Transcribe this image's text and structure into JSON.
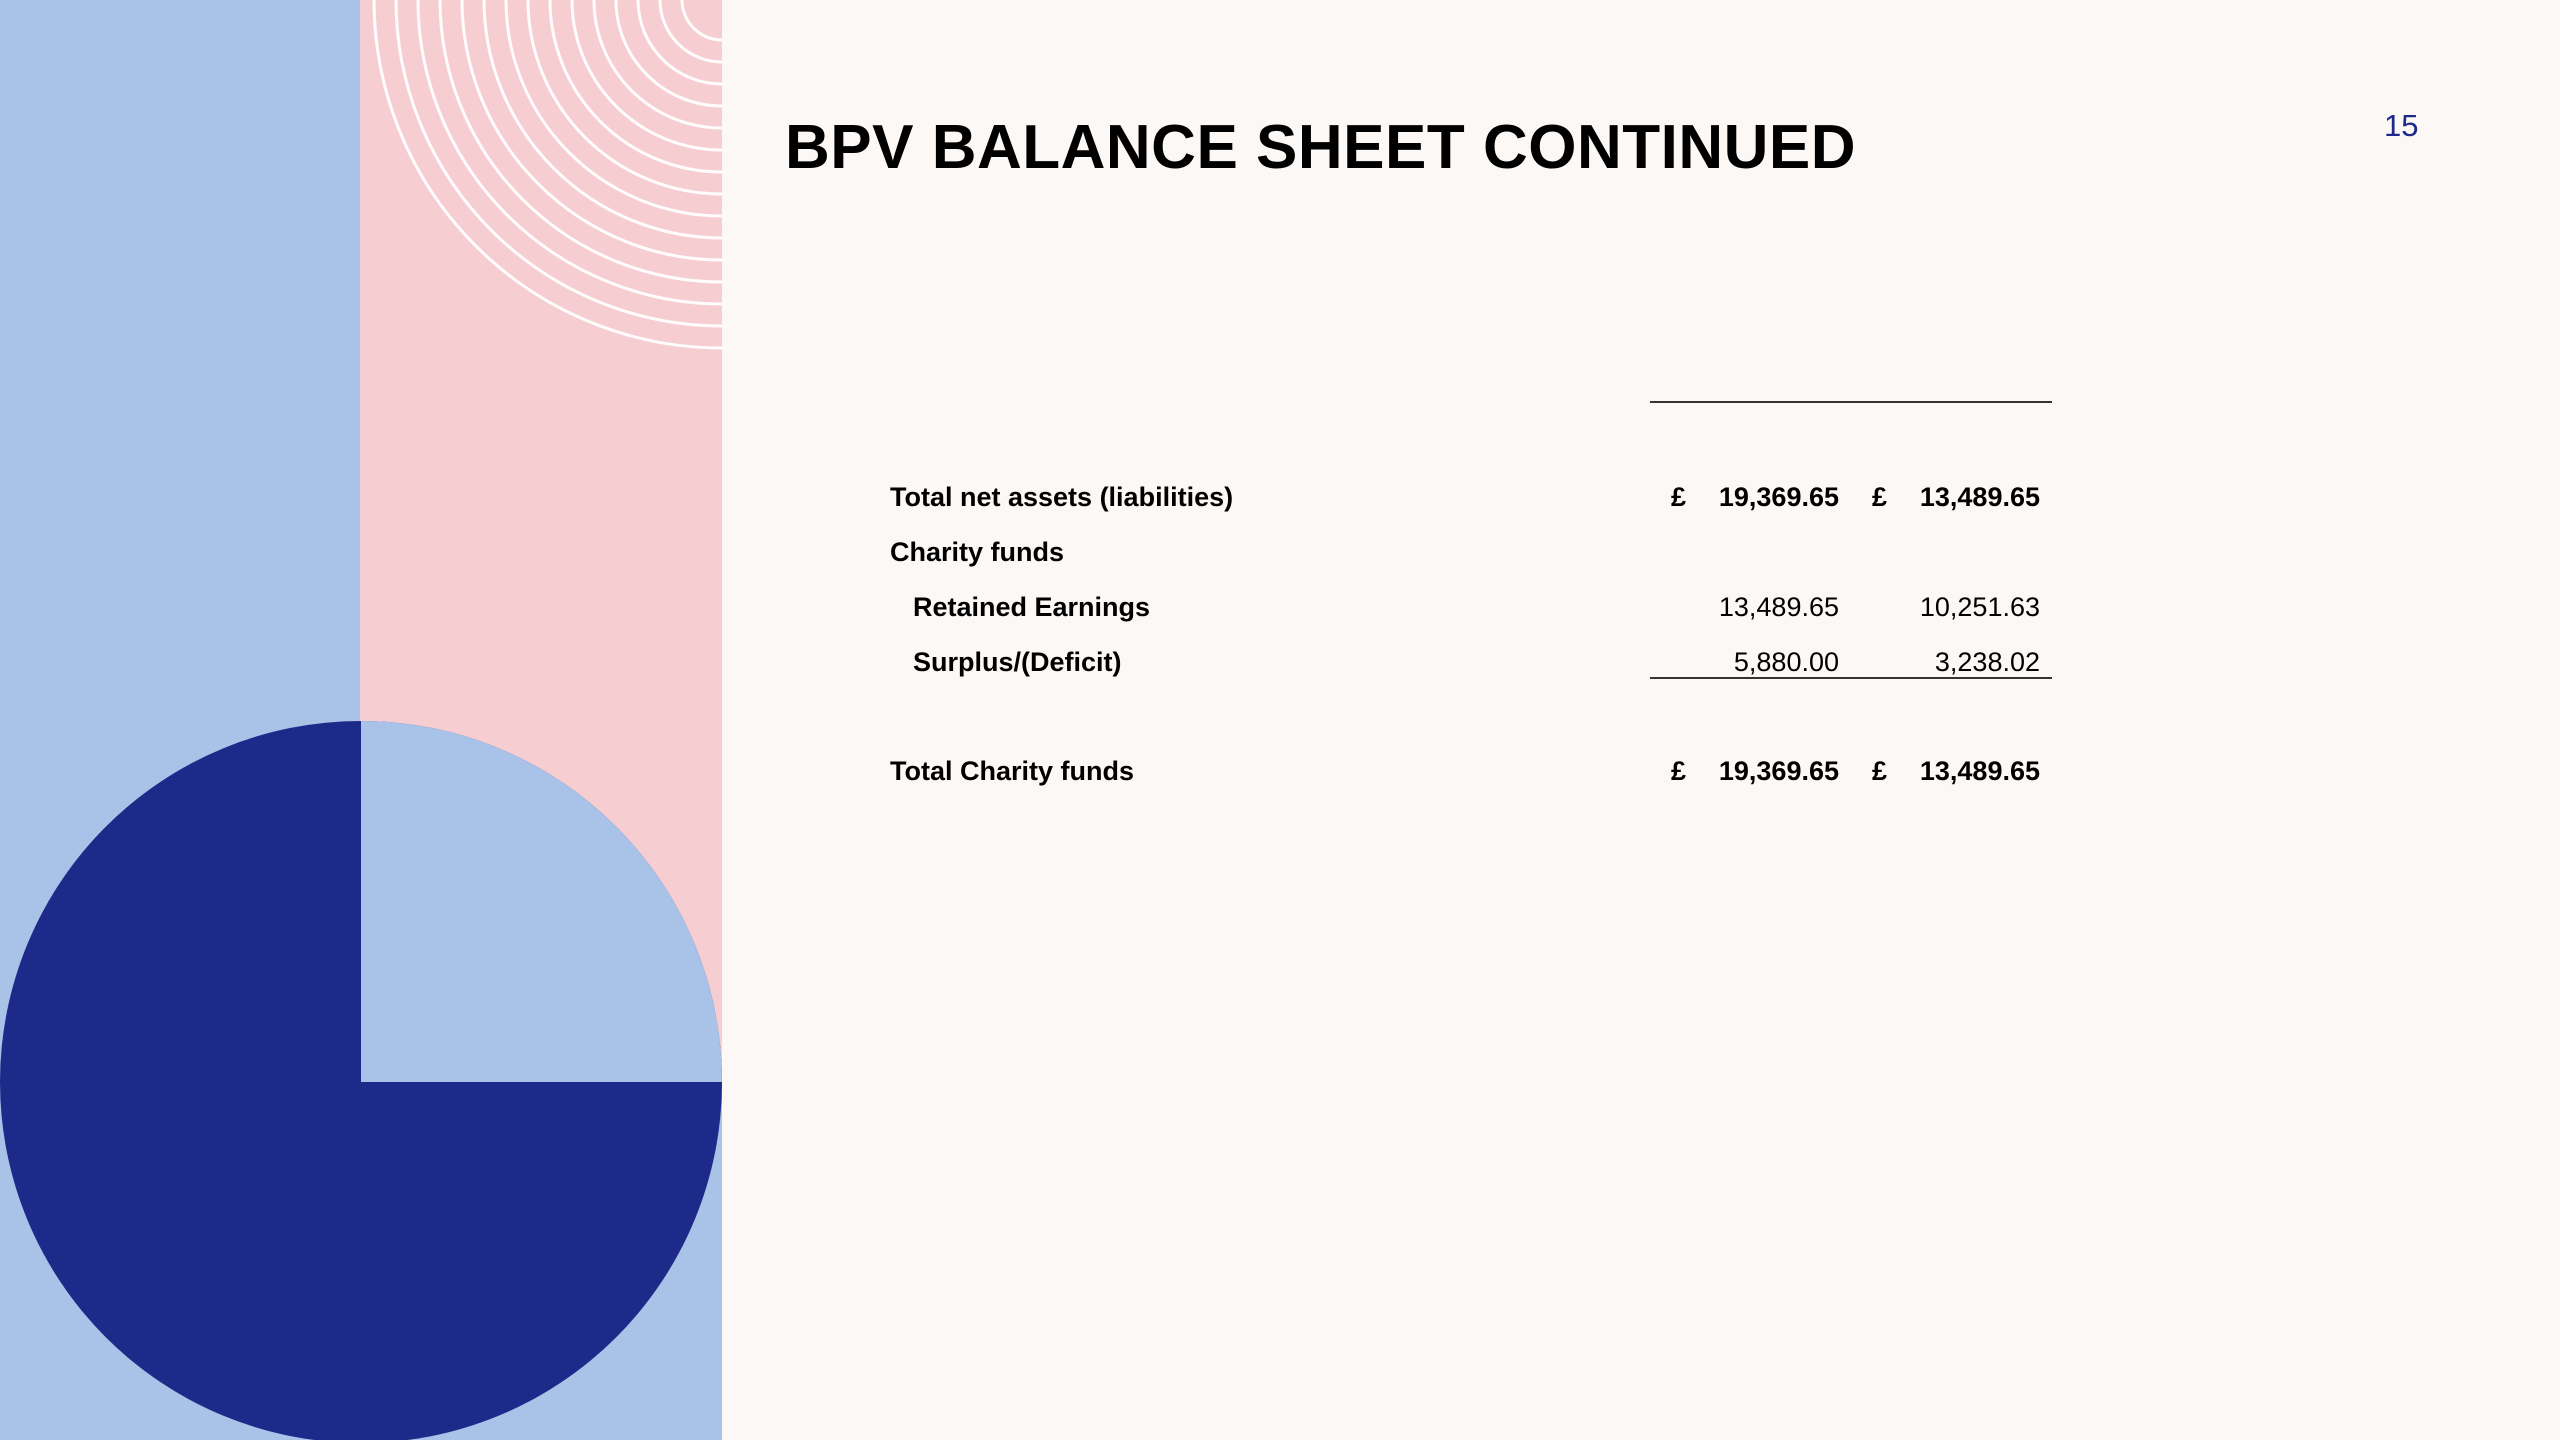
{
  "slide": {
    "title": "BPV BALANCE SHEET CONTINUED",
    "page_number": "15"
  },
  "colors": {
    "background": "#fbf8f5",
    "light_blue": "#a9c3e8",
    "pink": "#f6ced2",
    "navy": "#1e2a8a"
  },
  "balance_sheet": {
    "currency_symbol": "£",
    "rows": [
      {
        "label": "Total net assets (liabilities)",
        "value_1": "19,369.65",
        "value_2": "13,489.65"
      },
      {
        "label": "Charity funds"
      },
      {
        "label": "Retained Earnings",
        "value_1": "13,489.65",
        "value_2": "10,251.63"
      },
      {
        "label": "Surplus/(Deficit)",
        "value_1": "5,880.00",
        "value_2": "3,238.02"
      },
      {
        "label": "Total Charity funds",
        "value_1": "19,369.65",
        "value_2": "13,489.65"
      }
    ]
  }
}
